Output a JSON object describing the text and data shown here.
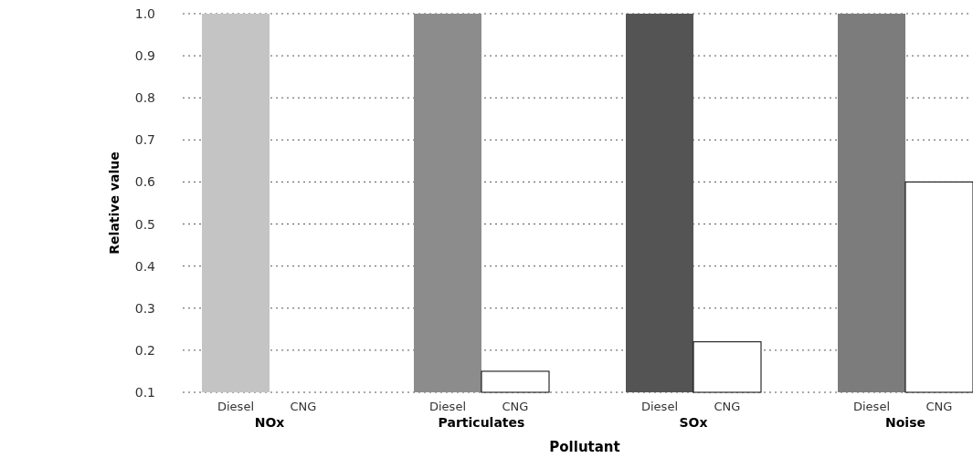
{
  "chart_data": {
    "type": "bar",
    "xlabel": "Pollutant",
    "ylabel": "Relative value",
    "categories": [
      "NOx",
      "Particulates",
      "SOx",
      "Noise"
    ],
    "series": [
      {
        "name": "Diesel",
        "colors": [
          "#c4c4c4",
          "#8c8c8c",
          "#545454",
          "#7c7c7c"
        ],
        "values": [
          1.0,
          1.0,
          1.0,
          1.0
        ]
      },
      {
        "name": "CNG",
        "color": "#ffffff",
        "values": [
          0.1,
          0.15,
          0.22,
          0.6
        ]
      }
    ],
    "ylim": [
      0.1,
      1.0
    ],
    "yticks": [
      0.1,
      0.2,
      0.3,
      0.4,
      0.5,
      0.6,
      0.7,
      0.8,
      0.9,
      {
        "value": 1.0,
        "label": "1.0"
      }
    ],
    "grid": "y",
    "line_style": "dotted"
  }
}
